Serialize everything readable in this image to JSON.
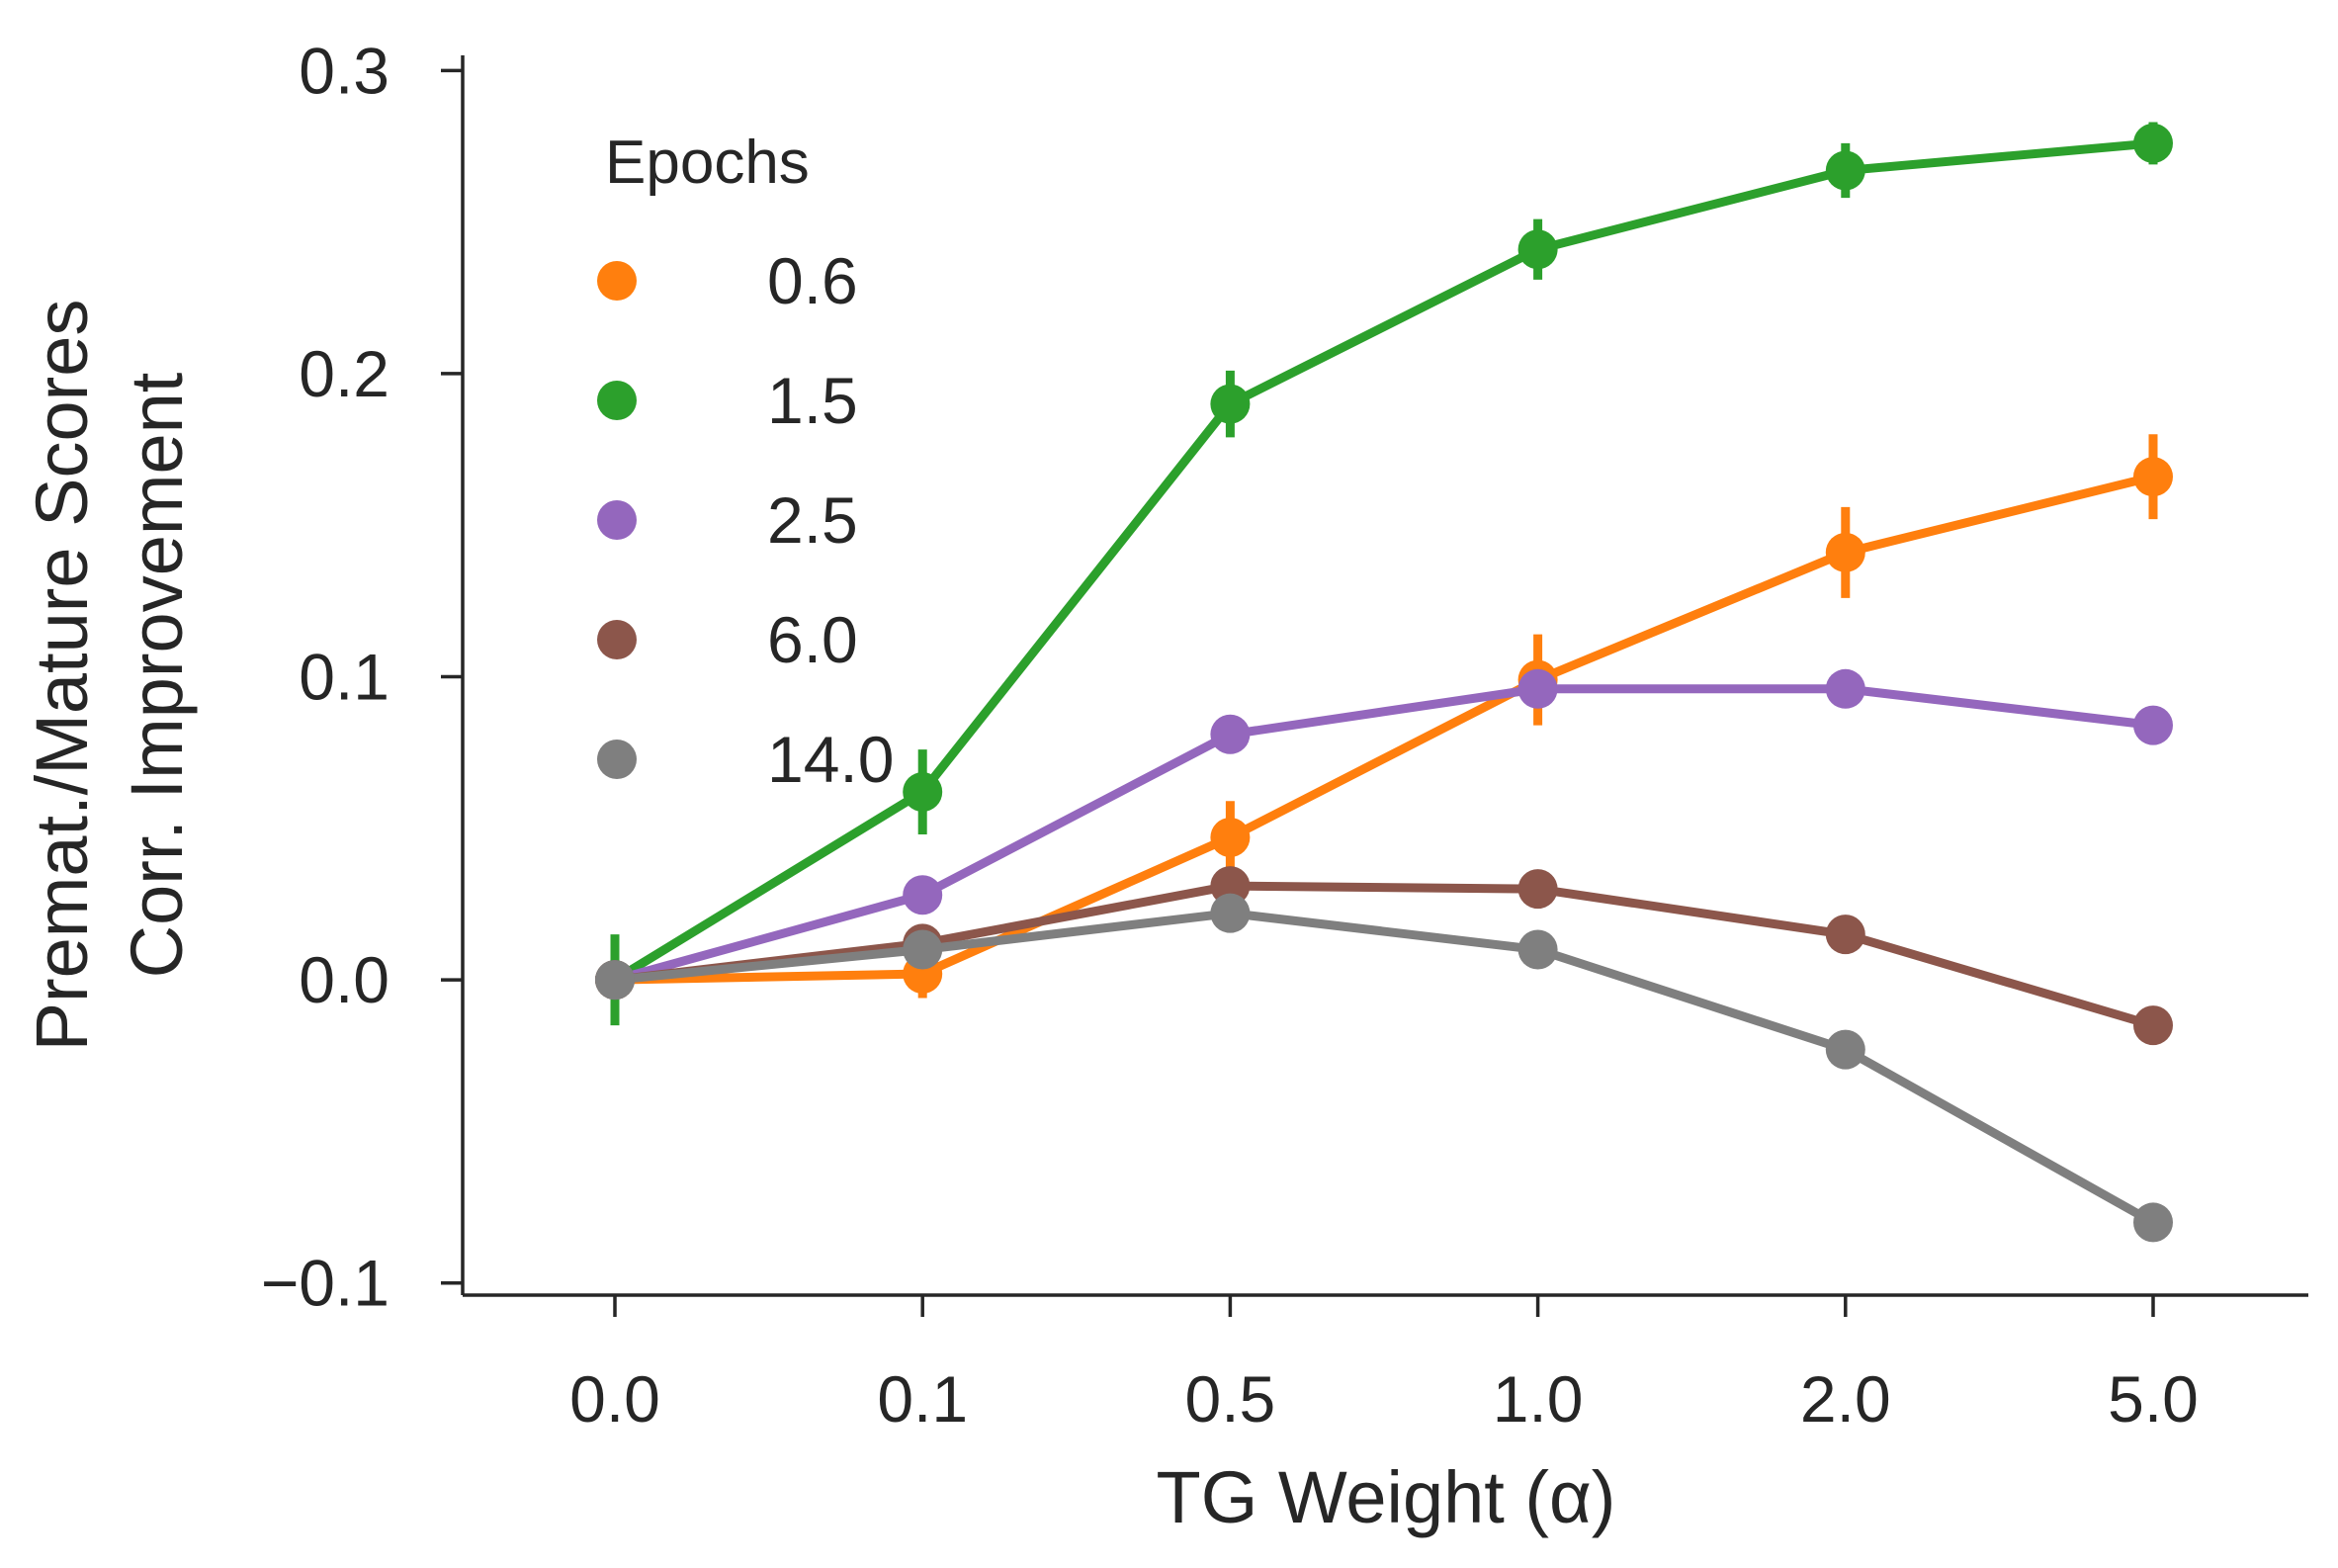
{
  "chart_data": {
    "type": "line",
    "title": "",
    "xlabel": "TG Weight (α)",
    "ylabel_lines": [
      "Premat./Mature Scores",
      "Corr. Improvement"
    ],
    "categories": [
      "0.0",
      "0.1",
      "0.5",
      "1.0",
      "2.0",
      "5.0"
    ],
    "yticks": [
      -0.1,
      0.0,
      0.1,
      0.2,
      0.3
    ],
    "ytick_labels": [
      "−0.1",
      "0.0",
      "0.1",
      "0.2",
      "0.3"
    ],
    "ylim": [
      -0.104,
      0.305
    ],
    "legend": {
      "title": "Epochs",
      "position": "upper-left"
    },
    "series": [
      {
        "name": "0.6",
        "color": "#ff7f0e",
        "values": [
          0.0,
          0.002,
          0.047,
          0.099,
          0.141,
          0.166
        ],
        "errors": [
          0.004,
          0.008,
          0.012,
          0.015,
          0.015,
          0.014
        ]
      },
      {
        "name": "1.5",
        "color": "#2ca02c",
        "values": [
          0.0,
          0.062,
          0.19,
          0.241,
          0.267,
          0.276
        ],
        "errors": [
          0.015,
          0.014,
          0.011,
          0.01,
          0.009,
          0.007
        ]
      },
      {
        "name": "2.5",
        "color": "#9467bd",
        "values": [
          0.0,
          0.028,
          0.081,
          0.096,
          0.096,
          0.084
        ],
        "errors": [
          0.003,
          0.004,
          0.003,
          0.003,
          0.003,
          0.004
        ]
      },
      {
        "name": "6.0",
        "color": "#8c564b",
        "values": [
          0.0,
          0.012,
          0.031,
          0.03,
          0.015,
          -0.015
        ],
        "errors": [
          0.003,
          0.003,
          0.003,
          0.003,
          0.003,
          0.003
        ]
      },
      {
        "name": "14.0",
        "color": "#7f7f7f",
        "values": [
          0.0,
          0.01,
          0.022,
          0.01,
          -0.023,
          -0.08
        ],
        "errors": [
          0.003,
          0.003,
          0.004,
          0.003,
          0.003,
          0.004
        ]
      }
    ]
  }
}
